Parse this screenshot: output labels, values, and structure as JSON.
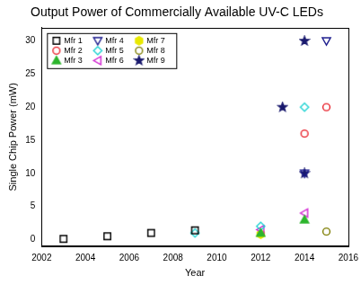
{
  "chart_data": {
    "type": "scatter",
    "title": "Output Power of Commercially Available UV-C LEDs",
    "x_label": "Year",
    "y_label": "Single Chip Power (mW)",
    "xlim": [
      2002,
      2016
    ],
    "xticks": [
      2002,
      2004,
      2006,
      2008,
      2010,
      2012,
      2014,
      2016
    ],
    "ylim": [
      -1,
      32
    ],
    "yticks": [
      0,
      5,
      10,
      15,
      20,
      25,
      30
    ],
    "grid": false,
    "legend": "upper left",
    "series": [
      {
        "name": "Mfr 1",
        "color": "#000000",
        "marker": "square",
        "x": [
          2003,
          2005,
          2007,
          2009
        ],
        "values": [
          0.1,
          0.5,
          1.0,
          1.4
        ]
      },
      {
        "name": "Mfr 2",
        "color": "#e8202a",
        "marker": "circle",
        "x": [
          2014,
          2015
        ],
        "values": [
          16,
          20
        ]
      },
      {
        "name": "Mfr 3",
        "color": "#2db52d",
        "marker": "triangle-up-filled",
        "x": [
          2012,
          2014
        ],
        "values": [
          1.0,
          3.0
        ]
      },
      {
        "name": "Mfr 4",
        "color": "#1a1a8c",
        "marker": "triangle-down",
        "x": [
          2014,
          2015
        ],
        "values": [
          10,
          30
        ]
      },
      {
        "name": "Mfr 5",
        "color": "#22d3d3",
        "marker": "diamond",
        "x": [
          2009,
          2012,
          2014
        ],
        "values": [
          1.0,
          2.0,
          20
        ]
      },
      {
        "name": "Mfr 6",
        "color": "#d020d0",
        "marker": "triangle-left",
        "x": [
          2012,
          2014
        ],
        "values": [
          1.5,
          4.0
        ]
      },
      {
        "name": "Mfr 7",
        "color": "#e8e800",
        "marker": "hexagon-filled",
        "x": [
          2012
        ],
        "values": [
          0.8
        ]
      },
      {
        "name": "Mfr 8",
        "color": "#7d7d00",
        "marker": "circle",
        "x": [
          2015
        ],
        "values": [
          1.2
        ]
      },
      {
        "name": "Mfr 9",
        "color": "#1a1a6e",
        "marker": "star-filled",
        "x": [
          2013,
          2014,
          2014
        ],
        "values": [
          20,
          30,
          10
        ]
      }
    ]
  }
}
